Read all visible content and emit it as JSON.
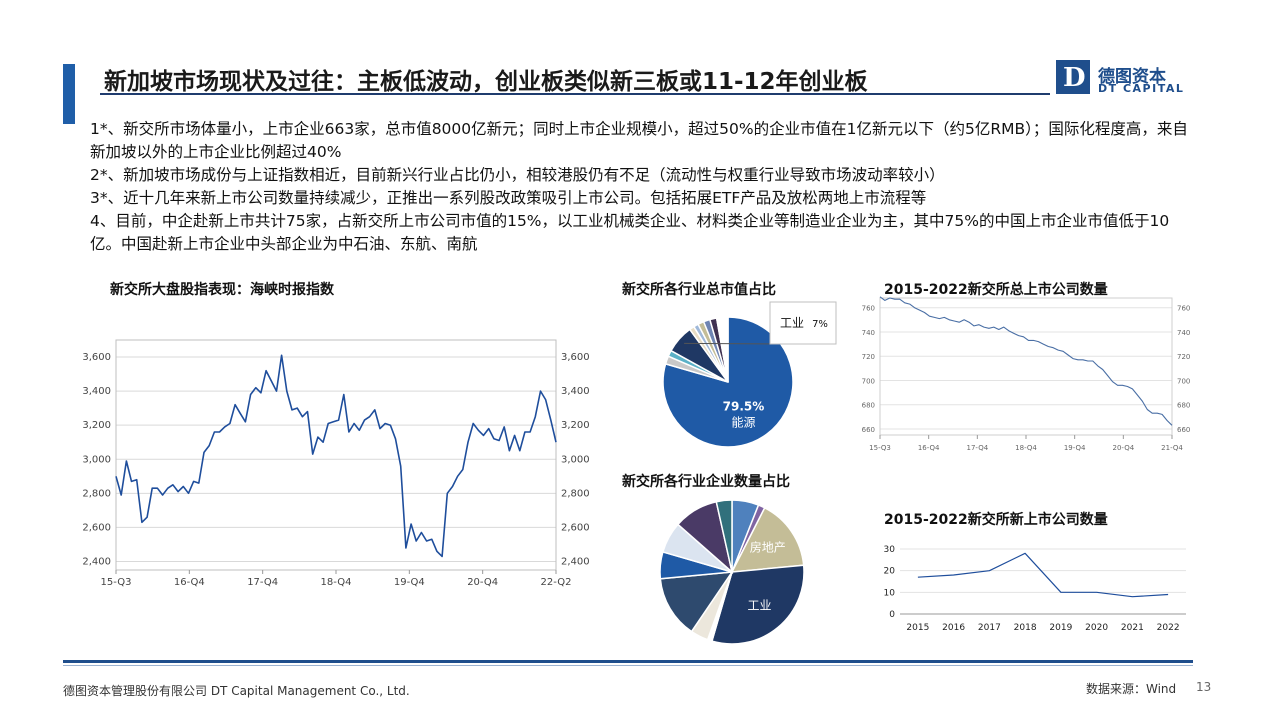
{
  "header": {
    "title": "新加坡市场现状及过往：主板低波动，创业板类似新三板或11-12年创业板",
    "logo_cn": "德图资本",
    "logo_en": "DT CAPITAL",
    "logo_mark": "D"
  },
  "points": [
    "1*、新交所市场体量小，上市企业663家，总市值8000亿新元；同时上市企业规模小，超过50%的企业市值在1亿新元以下（约5亿RMB）；国际化程度高，来自新加坡以外的上市企业比例超过40%",
    "2*、新加坡市场成份与上证指数相近，目前新兴行业占比仍小，相较港股仍有不足（流动性与权重行业导致市场波动率较小）",
    "3*、近十几年来新上市公司数量持续减少，正推出一系列股改政策吸引上市公司。包括拓展ETF产品及放松两地上市流程等",
    "4、目前，中企赴新上市共计75家，占新交所上市公司市值的15%，以工业机械类企业、材料类企业等制造业企业为主，其中75%的中国上市企业市值低于10亿。中国赴新上市企业中头部企业为中石油、东航、南航"
  ],
  "footer": {
    "company": "德图资本管理股份有限公司 DT Capital Management Co., Ltd.",
    "source": "数据来源：Wind",
    "page": "13"
  },
  "colors": {
    "accent": "#1f5ea8",
    "line": "#1f4e9c",
    "dark_navy": "#1f3c6e"
  },
  "chart_data": [
    {
      "id": "sti",
      "type": "line",
      "title": "新交所大盘股指表现：海峡时报指数",
      "x_ticks": [
        "15-Q3",
        "16-Q4",
        "17-Q4",
        "18-Q4",
        "19-Q4",
        "20-Q4",
        "22-Q2"
      ],
      "y_ticks": [
        "2,400",
        "2,600",
        "2,800",
        "3,000",
        "3,200",
        "3,400",
        "3,600"
      ],
      "ylim": [
        2350,
        3700
      ],
      "grid": true,
      "values": [
        2900,
        2790,
        2990,
        2870,
        2880,
        2630,
        2660,
        2830,
        2830,
        2790,
        2830,
        2850,
        2810,
        2840,
        2800,
        2870,
        2860,
        3040,
        3080,
        3160,
        3160,
        3190,
        3210,
        3320,
        3270,
        3220,
        3380,
        3420,
        3390,
        3520,
        3460,
        3400,
        3610,
        3400,
        3290,
        3300,
        3250,
        3280,
        3030,
        3130,
        3100,
        3210,
        3220,
        3230,
        3380,
        3160,
        3210,
        3170,
        3230,
        3250,
        3290,
        3180,
        3210,
        3200,
        3120,
        2960,
        2480,
        2620,
        2520,
        2570,
        2520,
        2530,
        2460,
        2430,
        2800,
        2840,
        2900,
        2940,
        3100,
        3210,
        3170,
        3140,
        3180,
        3120,
        3110,
        3190,
        3050,
        3140,
        3050,
        3160,
        3160,
        3250,
        3400,
        3350,
        3230,
        3100
      ]
    },
    {
      "id": "mktcap-share",
      "type": "pie",
      "title": "新交所各行业总市值占比",
      "slices": [
        {
          "label": "能源",
          "value": 79.5,
          "label_text": "79.5%",
          "color": "#1f5aa6"
        },
        {
          "label": "",
          "value": 2.0,
          "color": "#c8c8c8"
        },
        {
          "label": "",
          "value": 1.5,
          "color": "#5bb1c7"
        },
        {
          "label": "工业",
          "value": 7.0,
          "label_text": "7%",
          "color": "#1f3864"
        },
        {
          "label": "",
          "value": 1.2,
          "color": "#e7dcc4"
        },
        {
          "label": "",
          "value": 1.2,
          "color": "#9fb8d9"
        },
        {
          "label": "",
          "value": 1.5,
          "color": "#c4bd97"
        },
        {
          "label": "",
          "value": 1.6,
          "color": "#6f85b3"
        },
        {
          "label": "",
          "value": 1.7,
          "color": "#3f3151"
        },
        {
          "label": "",
          "value": 2.8,
          "color": "#ffffff"
        }
      ]
    },
    {
      "id": "listed-count",
      "type": "line",
      "title": "2015-2022新交所总上市公司数量",
      "x_ticks": [
        "15-Q3",
        "16-Q4",
        "17-Q4",
        "18-Q4",
        "19-Q4",
        "20-Q4",
        "21-Q4"
      ],
      "y_ticks": [
        "660",
        "680",
        "700",
        "720",
        "740",
        "760"
      ],
      "ylim": [
        655,
        768
      ],
      "grid": true,
      "values": [
        769,
        766,
        768,
        767,
        767,
        764,
        763,
        760,
        758,
        756,
        753,
        752,
        751,
        752,
        750,
        749,
        748,
        750,
        748,
        745,
        746,
        744,
        743,
        744,
        742,
        744,
        741,
        739,
        737,
        736,
        733,
        733,
        732,
        730,
        728,
        727,
        725,
        724,
        721,
        718,
        717,
        717,
        716,
        716,
        712,
        709,
        704,
        699,
        696,
        696,
        695,
        693,
        688,
        683,
        676,
        673,
        673,
        672,
        667,
        663
      ]
    },
    {
      "id": "company-count-share",
      "type": "pie",
      "title": "新交所各行业企业数量占比",
      "slices": [
        {
          "label": "",
          "value": 6.0,
          "color": "#4f81bd"
        },
        {
          "label": "",
          "value": 1.5,
          "color": "#8064a2"
        },
        {
          "label": "房地产",
          "value": 16.0,
          "label_text": "房地产",
          "color": "#c4bd97"
        },
        {
          "label": "工业",
          "value": 31.0,
          "label_text": "工业",
          "color": "#1f3864"
        },
        {
          "label": "",
          "value": 1.0,
          "color": "#ffffff"
        },
        {
          "label": "",
          "value": 4.0,
          "color": "#ece7dc"
        },
        {
          "label": "",
          "value": 14.0,
          "color": "#2e4a6e"
        },
        {
          "label": "",
          "value": 6.0,
          "color": "#1f5aa6"
        },
        {
          "label": "",
          "value": 7.0,
          "color": "#dbe4f0"
        },
        {
          "label": "",
          "value": 10.0,
          "color": "#4a3a66"
        },
        {
          "label": "",
          "value": 3.5,
          "color": "#31707c"
        }
      ]
    },
    {
      "id": "new-listings",
      "type": "line",
      "title": "2015-2022新交所新上市公司数量",
      "categories": [
        "2015",
        "2016",
        "2017",
        "2018",
        "2019",
        "2020",
        "2021",
        "2022"
      ],
      "values": [
        17,
        18,
        20,
        28,
        10,
        10,
        8,
        9
      ],
      "y_ticks": [
        "0",
        "10",
        "20",
        "30"
      ],
      "ylim": [
        0,
        30
      ],
      "grid": true
    }
  ]
}
